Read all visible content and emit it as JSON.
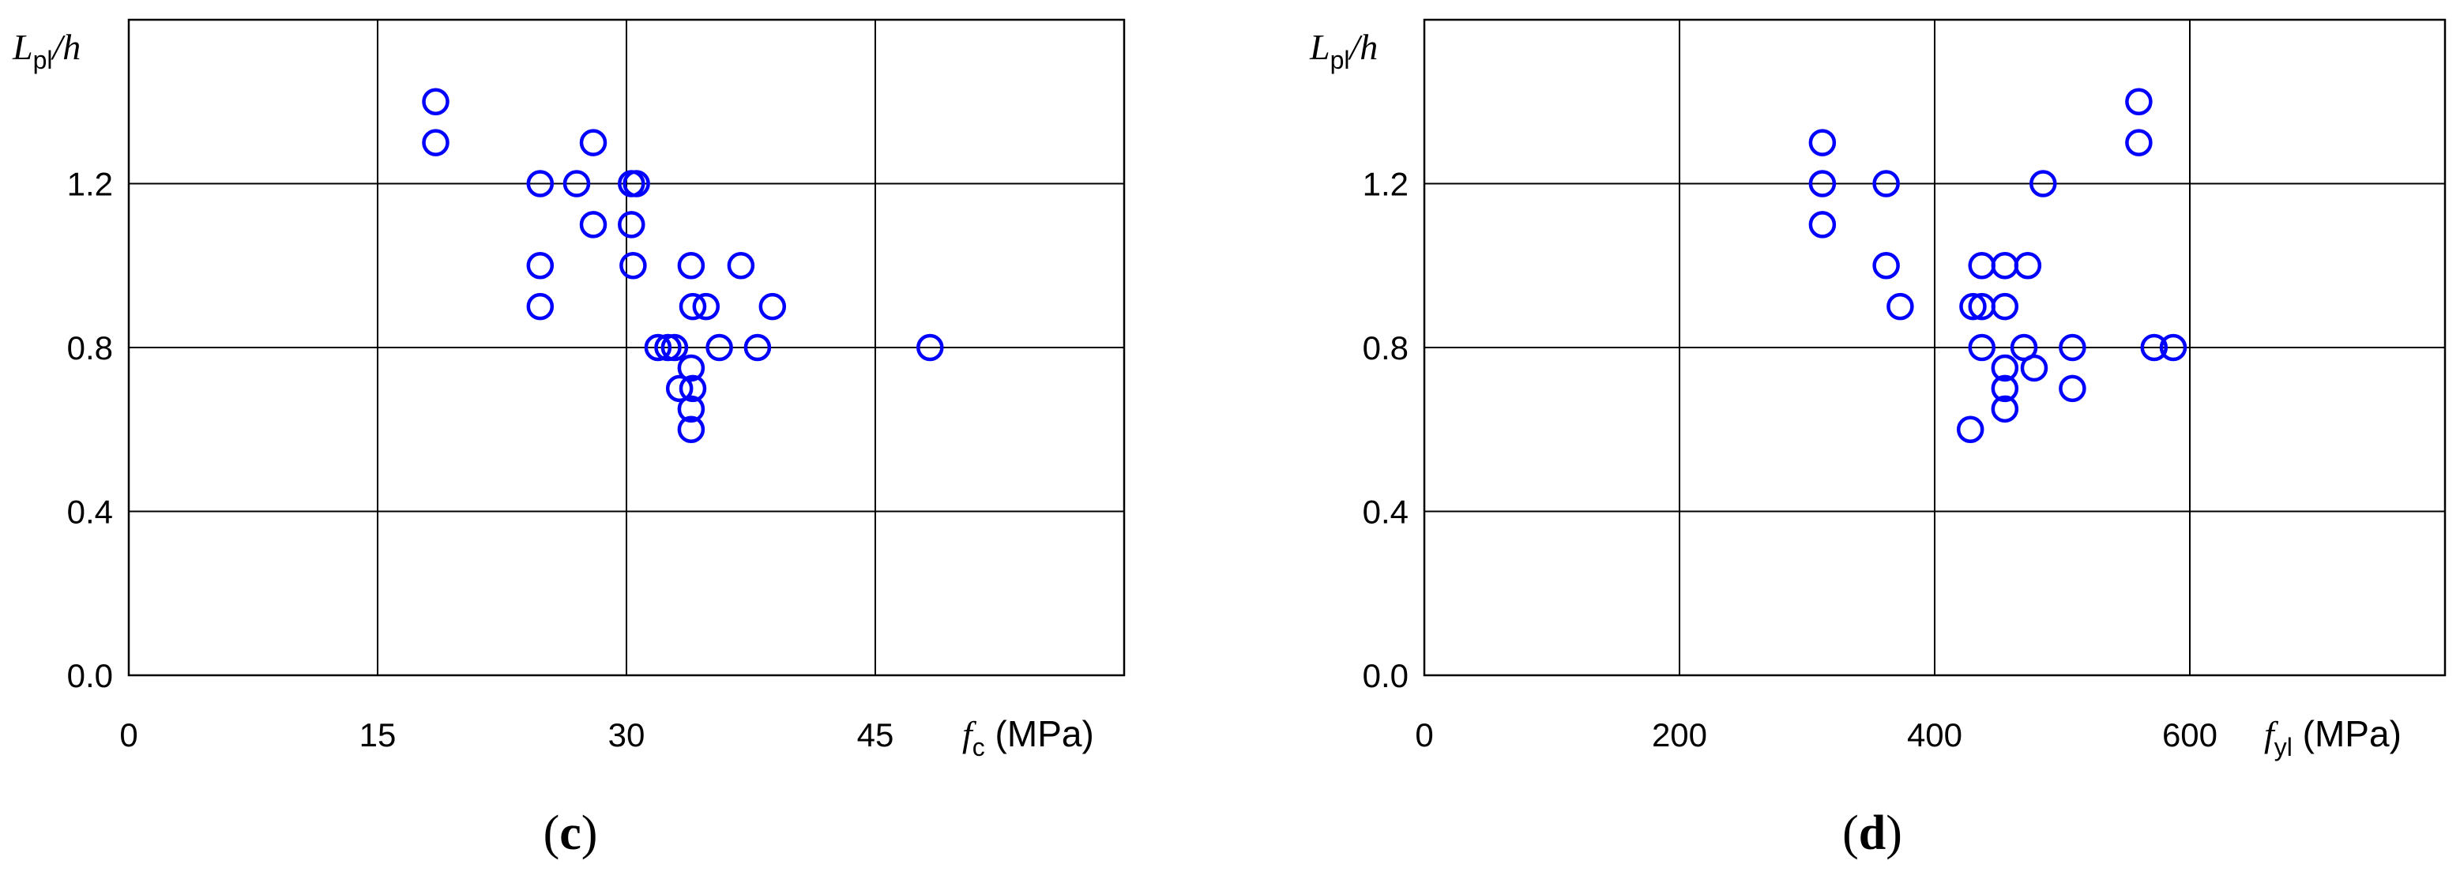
{
  "chart_data": [
    {
      "type": "scatter",
      "panel_label": {
        "open": "(",
        "letter": "c",
        "close": ")"
      },
      "ylabel": {
        "main": "L",
        "sub": "pl",
        "rest": "/h"
      },
      "xlabel": {
        "main": "f",
        "sub": "c",
        "unit": " (MPa)"
      },
      "xlim": [
        0,
        60
      ],
      "ylim": [
        0,
        1.6
      ],
      "x_ticks": [
        "0",
        "15",
        "30",
        "45"
      ],
      "x_tick_values": [
        0,
        15,
        30,
        45
      ],
      "y_ticks": [
        "0.0",
        "0.4",
        "0.8",
        "1.2"
      ],
      "y_tick_values": [
        0.0,
        0.4,
        0.8,
        1.2
      ],
      "grid": true,
      "marker_color": "#0000ff",
      "points": [
        [
          18.5,
          1.4
        ],
        [
          18.5,
          1.3
        ],
        [
          24.8,
          1.2
        ],
        [
          27.0,
          1.2
        ],
        [
          28.0,
          1.3
        ],
        [
          28.0,
          1.1
        ],
        [
          30.3,
          1.2
        ],
        [
          30.6,
          1.2
        ],
        [
          30.3,
          1.1
        ],
        [
          30.4,
          1.0
        ],
        [
          24.8,
          1.0
        ],
        [
          24.8,
          0.9
        ],
        [
          33.9,
          1.0
        ],
        [
          36.9,
          1.0
        ],
        [
          34.0,
          0.9
        ],
        [
          34.8,
          0.9
        ],
        [
          38.8,
          0.9
        ],
        [
          31.9,
          0.8
        ],
        [
          32.5,
          0.8
        ],
        [
          32.9,
          0.8
        ],
        [
          35.6,
          0.8
        ],
        [
          37.9,
          0.8
        ],
        [
          48.3,
          0.8
        ],
        [
          33.9,
          0.75
        ],
        [
          33.2,
          0.7
        ],
        [
          34.0,
          0.7
        ],
        [
          33.9,
          0.65
        ],
        [
          33.9,
          0.6
        ]
      ]
    },
    {
      "type": "scatter",
      "panel_label": {
        "open": "(",
        "letter": "d",
        "close": ")"
      },
      "ylabel": {
        "main": "L",
        "sub": "pl",
        "rest": "/h"
      },
      "xlabel": {
        "main": "f",
        "sub": "yl",
        "unit": " (MPa)"
      },
      "xlim": [
        0,
        800
      ],
      "ylim": [
        0,
        1.6
      ],
      "x_ticks": [
        "0",
        "200",
        "400",
        "600"
      ],
      "x_tick_values": [
        0,
        200,
        400,
        600
      ],
      "y_ticks": [
        "0.0",
        "0.4",
        "0.8",
        "1.2"
      ],
      "y_tick_values": [
        0.0,
        0.4,
        0.8,
        1.2
      ],
      "grid": true,
      "marker_color": "#0000ff",
      "points": [
        [
          312,
          1.3
        ],
        [
          312,
          1.2
        ],
        [
          312,
          1.1
        ],
        [
          362,
          1.2
        ],
        [
          362,
          1.0
        ],
        [
          373,
          0.9
        ],
        [
          437,
          1.0
        ],
        [
          455,
          1.0
        ],
        [
          473,
          1.0
        ],
        [
          430,
          0.9
        ],
        [
          437,
          0.9
        ],
        [
          455,
          0.9
        ],
        [
          437,
          0.8
        ],
        [
          470,
          0.8
        ],
        [
          508,
          0.8
        ],
        [
          455,
          0.75
        ],
        [
          478,
          0.75
        ],
        [
          455,
          0.7
        ],
        [
          508,
          0.7
        ],
        [
          455,
          0.65
        ],
        [
          428,
          0.6
        ],
        [
          485,
          1.2
        ],
        [
          560,
          1.4
        ],
        [
          560,
          1.3
        ],
        [
          572,
          0.8
        ],
        [
          587,
          0.8
        ]
      ]
    }
  ]
}
